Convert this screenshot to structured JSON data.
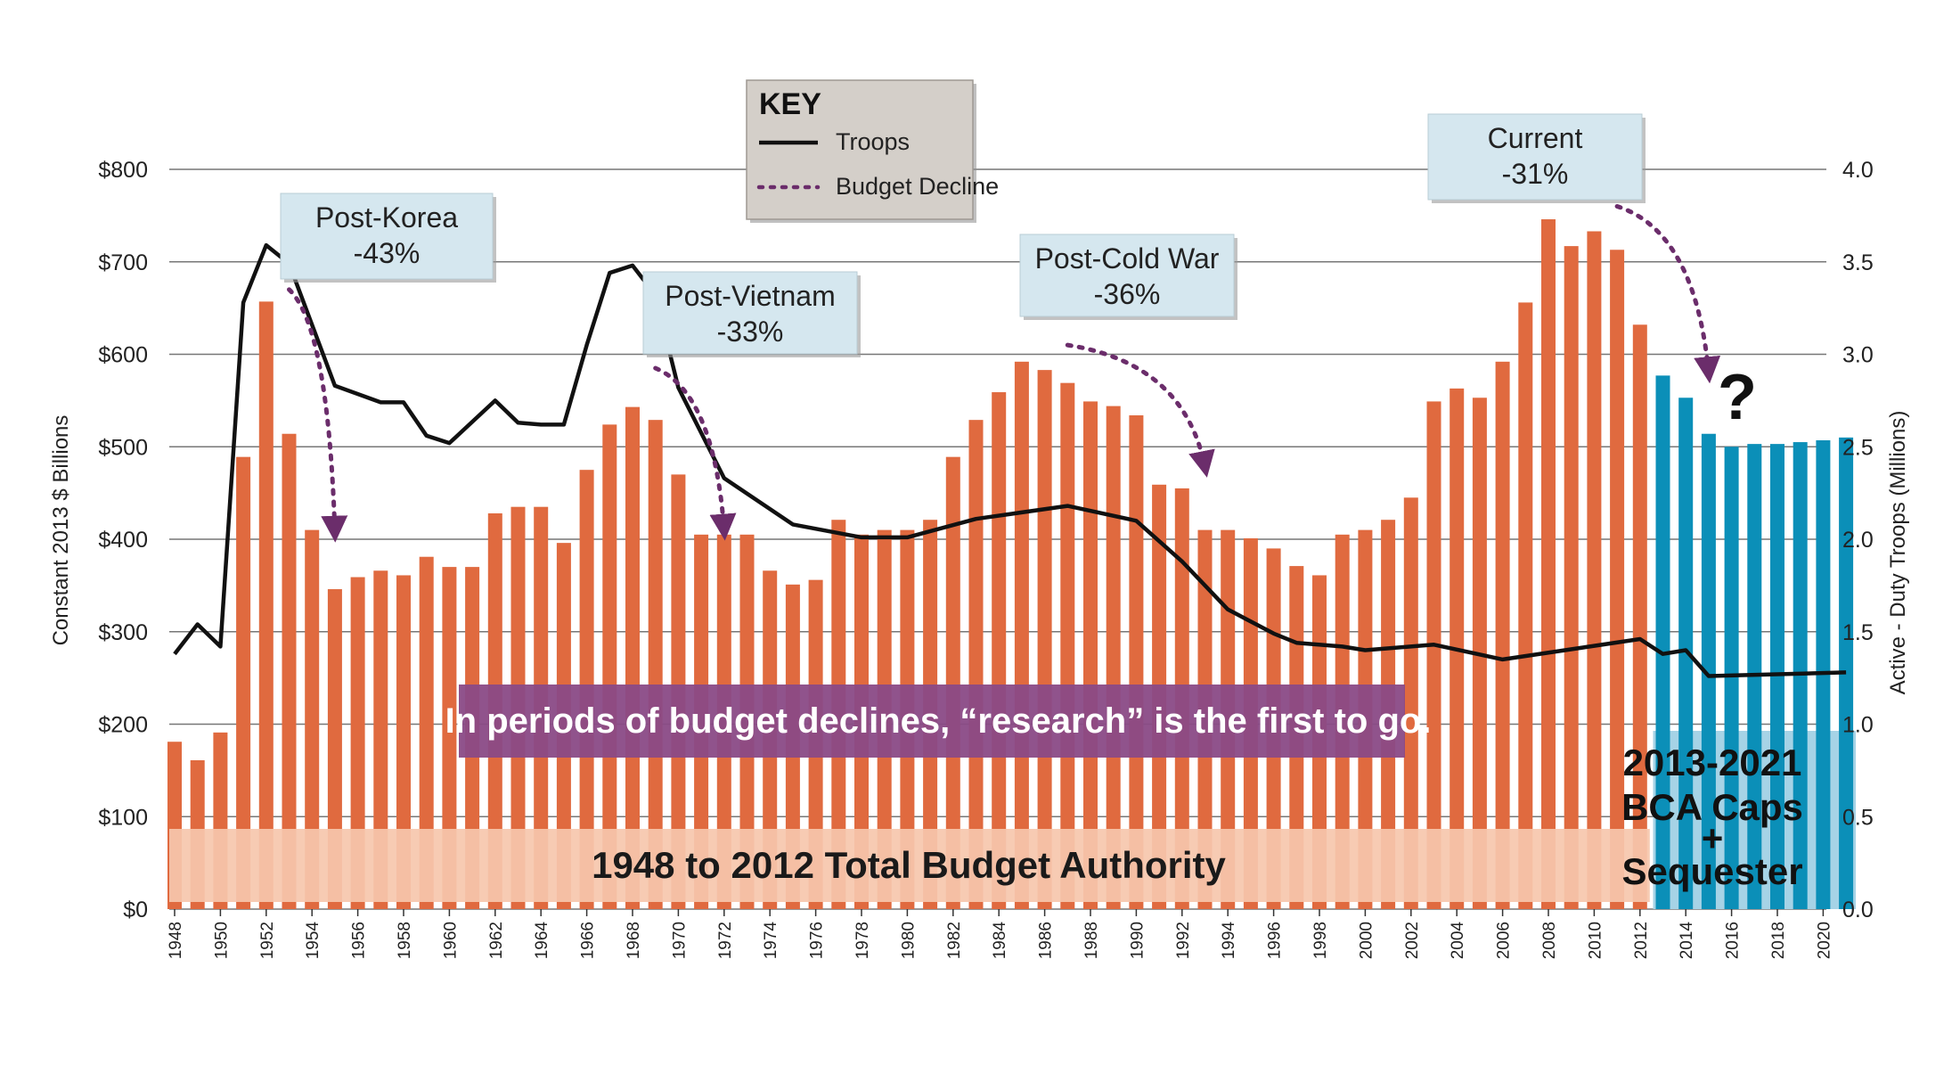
{
  "chart_data": {
    "type": "bar",
    "y_axis_left": {
      "label": "Constant 2013 $ Billions",
      "range": [
        0,
        800
      ],
      "ticks": [
        "$0",
        "$100",
        "$200",
        "$300",
        "$400",
        "$500",
        "$600",
        "$700",
        "$800"
      ]
    },
    "y_axis_right": {
      "label": "Active - Duty Troops (Millions)",
      "range": [
        0,
        4.0
      ],
      "ticks": [
        "0.0",
        "0.5",
        "1.0",
        "1.5",
        "2.0",
        "2.5",
        "3.0",
        "3.5",
        "4.0"
      ]
    },
    "x_ticks": [
      "1948",
      "1950",
      "1952",
      "1954",
      "1956",
      "1958",
      "1960",
      "1962",
      "1964",
      "1966",
      "1968",
      "1970",
      "1972",
      "1974",
      "1976",
      "1978",
      "1980",
      "1982",
      "1984",
      "1986",
      "1988",
      "1990",
      "1992",
      "1994",
      "1996",
      "1998",
      "2000",
      "2002",
      "2004",
      "2006",
      "2008",
      "2010",
      "2012",
      "2014",
      "2016",
      "2018",
      "2020"
    ],
    "years": [
      1948,
      1949,
      1950,
      1951,
      1952,
      1953,
      1954,
      1955,
      1956,
      1957,
      1958,
      1959,
      1960,
      1961,
      1962,
      1963,
      1964,
      1965,
      1966,
      1967,
      1968,
      1969,
      1970,
      1971,
      1972,
      1973,
      1974,
      1975,
      1976,
      1977,
      1978,
      1979,
      1980,
      1981,
      1982,
      1983,
      1984,
      1985,
      1986,
      1987,
      1988,
      1989,
      1990,
      1991,
      1992,
      1993,
      1994,
      1995,
      1996,
      1997,
      1998,
      1999,
      2000,
      2001,
      2002,
      2003,
      2004,
      2005,
      2006,
      2007,
      2008,
      2009,
      2010,
      2011,
      2012,
      2013,
      2014,
      2015,
      2016,
      2017,
      2018,
      2019,
      2020,
      2021
    ],
    "series": [
      {
        "role": "budget_authority_bars",
        "values": [
          181,
          161,
          191,
          489,
          657,
          514,
          410,
          346,
          359,
          366,
          361,
          381,
          370,
          370,
          428,
          435,
          435,
          396,
          475,
          524,
          543,
          529,
          470,
          405,
          405,
          405,
          366,
          351,
          356,
          421,
          405,
          410,
          410,
          421,
          489,
          529,
          559,
          592,
          583,
          569,
          549,
          544,
          534,
          459,
          455,
          410,
          410,
          401,
          390,
          371,
          361,
          405,
          410,
          421,
          445,
          549,
          563,
          553,
          592,
          656,
          746,
          717,
          733,
          713,
          632,
          577,
          553,
          514,
          500,
          503,
          503,
          505,
          507,
          510
        ]
      },
      {
        "role": "bca_caps_bars",
        "start_year": 2013
      },
      {
        "name": "Troops",
        "role": "troops_line",
        "years": [
          1948,
          1949,
          1950,
          1951,
          1952,
          1953,
          1955,
          1957,
          1958,
          1959,
          1960,
          1962,
          1963,
          1964,
          1965,
          1966,
          1967,
          1968,
          1969,
          1970,
          1972,
          1975,
          1978,
          1980,
          1983,
          1987,
          1990,
          1992,
          1994,
          1996,
          1997,
          1999,
          2000,
          2003,
          2006,
          2012,
          2013,
          2014,
          2015,
          2021
        ],
        "values": [
          1.38,
          1.54,
          1.42,
          3.28,
          3.59,
          3.49,
          2.83,
          2.74,
          2.74,
          2.56,
          2.52,
          2.75,
          2.63,
          2.62,
          2.62,
          3.05,
          3.44,
          3.48,
          3.32,
          2.82,
          2.33,
          2.08,
          2.01,
          2.01,
          2.11,
          2.18,
          2.1,
          1.88,
          1.62,
          1.49,
          1.44,
          1.42,
          1.4,
          1.43,
          1.35,
          1.46,
          1.38,
          1.4,
          1.26,
          1.28
        ]
      }
    ],
    "budget_decline_arrows": [
      {
        "from": [
          1953,
          670
        ],
        "to": [
          1955,
          408
        ]
      },
      {
        "from": [
          1969,
          585
        ],
        "to": [
          1972,
          410
        ]
      },
      {
        "from": [
          1987,
          610
        ],
        "to": [
          1993,
          478
        ]
      },
      {
        "from": [
          2011,
          760
        ],
        "to": [
          2015,
          580
        ]
      }
    ],
    "callouts": [
      {
        "lines": [
          "Post-Korea",
          "-43%"
        ]
      },
      {
        "lines": [
          "Post-Vietnam",
          "-33%"
        ]
      },
      {
        "lines": [
          "Post-Cold War",
          "-36%"
        ]
      },
      {
        "lines": [
          "Current",
          "-31%"
        ]
      }
    ],
    "legend": {
      "title": "KEY",
      "items": [
        {
          "label": "Troops",
          "style": "solid"
        },
        {
          "label": "Budget Decline",
          "style": "dotted"
        }
      ],
      "placement": "top-center"
    },
    "banner": "In periods of budget declines, “research” is the first to go.",
    "band_label": "1948 to 2012 Total Budget Authority",
    "bca_label": [
      "2013-2021",
      "BCA Caps",
      "+",
      "Sequester"
    ],
    "question_mark": "?",
    "grid": true,
    "colors": {
      "bar": "#e06a3f",
      "bca_bar": "#0b8fb8",
      "bca_band": "#a6d3e6",
      "line": "#111111",
      "decline": "#6b2d6b",
      "callout_bg": "#d5e7ef",
      "key_bg": "#d4cfc9",
      "banner_bg": "#8a4a86",
      "band_bg": "#f6c7ac",
      "grid": "#777777"
    }
  }
}
